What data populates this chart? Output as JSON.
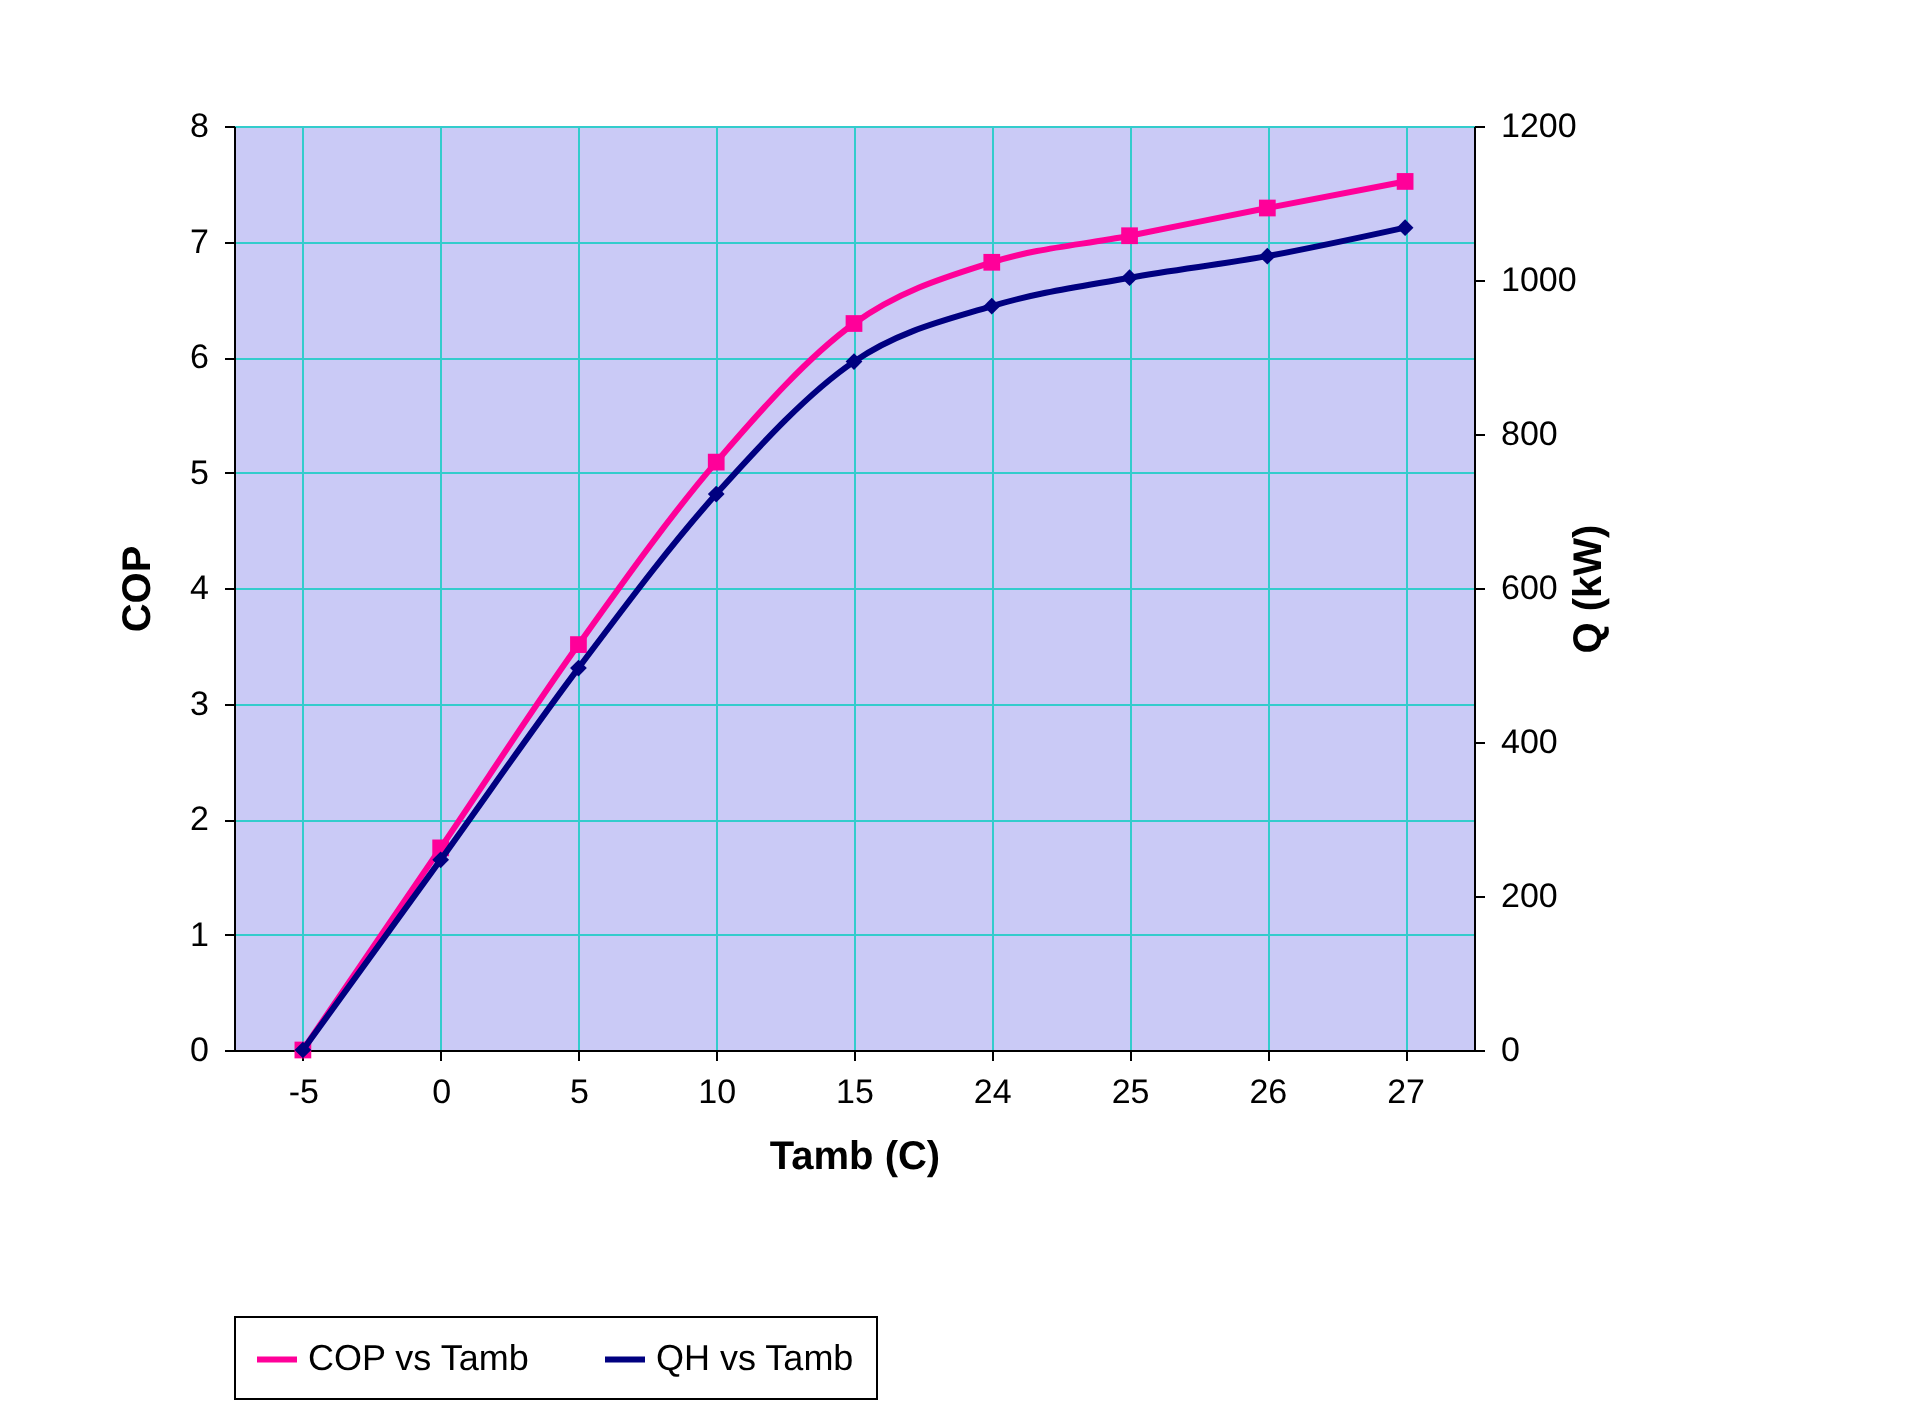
{
  "chart_data": {
    "type": "line",
    "xlabel": "Tamb (C)",
    "ylabel": "COP",
    "y2label": "Q (kW)",
    "categories": [
      "-5",
      "0",
      "5",
      "10",
      "15",
      "24",
      "25",
      "26",
      "27"
    ],
    "series": [
      {
        "name": "COP vs Tamb",
        "color": "#ff0099",
        "marker": "square",
        "values": [
          0,
          1.75,
          3.51,
          5.09,
          6.29,
          6.82,
          7.05,
          7.29,
          7.52
        ]
      },
      {
        "name": "QH vs Tamb",
        "color": "#000080",
        "marker": "diamond",
        "axis": "y2",
        "values": [
          0,
          247,
          496,
          722,
          894,
          966,
          1003,
          1031,
          1068
        ]
      }
    ],
    "ylim": [
      0,
      8
    ],
    "yticks": [
      0,
      1,
      2,
      3,
      4,
      5,
      6,
      7,
      8
    ],
    "y2lim": [
      0,
      1200
    ],
    "y2ticks": [
      0,
      200,
      400,
      600,
      800,
      1000,
      1200
    ],
    "grid": true,
    "legend": "bottom"
  }
}
